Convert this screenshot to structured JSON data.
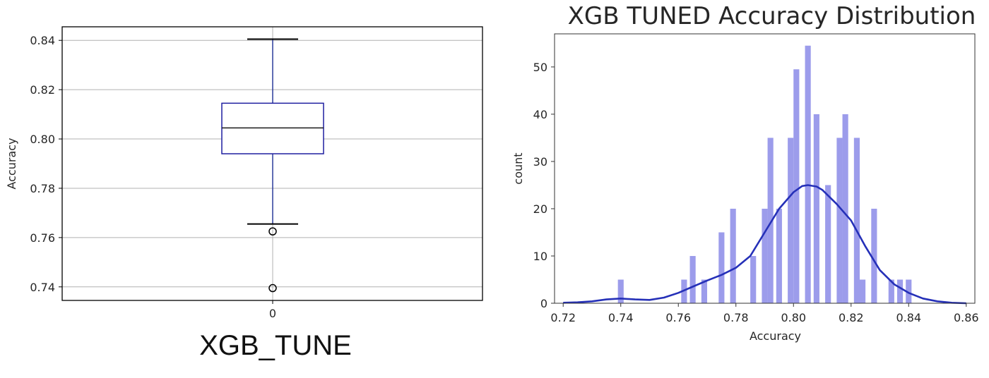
{
  "caption": "XGB_TUNE",
  "chart_data": [
    {
      "type": "box",
      "title": "",
      "xlabel": "",
      "ylabel": "Accuracy",
      "categories": [
        "0"
      ],
      "yticks": [
        "0.74",
        "0.76",
        "0.78",
        "0.80",
        "0.82",
        "0.84"
      ],
      "ylim": [
        0.7345,
        0.8455
      ],
      "grid": true,
      "box": {
        "whisker_low": 0.7655,
        "q1": 0.794,
        "median": 0.8045,
        "q3": 0.8145,
        "whisker_high": 0.8405,
        "outliers": [
          0.7625,
          0.7395
        ]
      },
      "colors": {
        "box": "#1f1fa0",
        "median": "#1a1a1a",
        "whisker": "#2a3a9a",
        "cap": "#000000",
        "grid": "#b0b0b0"
      }
    },
    {
      "type": "histogram",
      "title": "XGB TUNED Accuracy Distribution",
      "xlabel": "Accuracy",
      "ylabel": "count",
      "xticks": [
        "0.72",
        "0.74",
        "0.76",
        "0.78",
        "0.80",
        "0.82",
        "0.84",
        "0.86"
      ],
      "yticks": [
        "0",
        "10",
        "20",
        "30",
        "40",
        "50"
      ],
      "xlim": [
        0.717,
        0.863
      ],
      "ylim": [
        0,
        57
      ],
      "bar_width": 0.002,
      "bars": [
        {
          "x": 0.74,
          "count": 5
        },
        {
          "x": 0.762,
          "count": 5
        },
        {
          "x": 0.765,
          "count": 10
        },
        {
          "x": 0.769,
          "count": 5
        },
        {
          "x": 0.775,
          "count": 15
        },
        {
          "x": 0.779,
          "count": 20
        },
        {
          "x": 0.786,
          "count": 10
        },
        {
          "x": 0.79,
          "count": 20
        },
        {
          "x": 0.792,
          "count": 35
        },
        {
          "x": 0.795,
          "count": 20
        },
        {
          "x": 0.799,
          "count": 35
        },
        {
          "x": 0.801,
          "count": 49.5
        },
        {
          "x": 0.805,
          "count": 54.5
        },
        {
          "x": 0.808,
          "count": 40
        },
        {
          "x": 0.812,
          "count": 25
        },
        {
          "x": 0.816,
          "count": 35
        },
        {
          "x": 0.818,
          "count": 40
        },
        {
          "x": 0.822,
          "count": 35
        },
        {
          "x": 0.824,
          "count": 5
        },
        {
          "x": 0.828,
          "count": 20
        },
        {
          "x": 0.834,
          "count": 5
        },
        {
          "x": 0.837,
          "count": 5
        },
        {
          "x": 0.84,
          "count": 5
        }
      ],
      "kde": {
        "x": [
          0.72,
          0.725,
          0.73,
          0.735,
          0.74,
          0.745,
          0.75,
          0.755,
          0.76,
          0.765,
          0.77,
          0.775,
          0.78,
          0.785,
          0.79,
          0.795,
          0.8,
          0.803,
          0.805,
          0.808,
          0.81,
          0.815,
          0.82,
          0.825,
          0.83,
          0.835,
          0.84,
          0.845,
          0.85,
          0.855,
          0.86
        ],
        "y": [
          0.1,
          0.2,
          0.4,
          0.8,
          1.0,
          0.8,
          0.7,
          1.2,
          2.2,
          3.5,
          4.8,
          6.0,
          7.5,
          10.0,
          15.0,
          20.0,
          23.5,
          24.8,
          25.0,
          24.7,
          24.0,
          21.0,
          17.5,
          12.0,
          7.0,
          4.0,
          2.2,
          1.0,
          0.4,
          0.1,
          0.0
        ]
      },
      "colors": {
        "bar": "#9c9ceb",
        "kde": "#2530b8",
        "axis": "#333333"
      }
    }
  ]
}
